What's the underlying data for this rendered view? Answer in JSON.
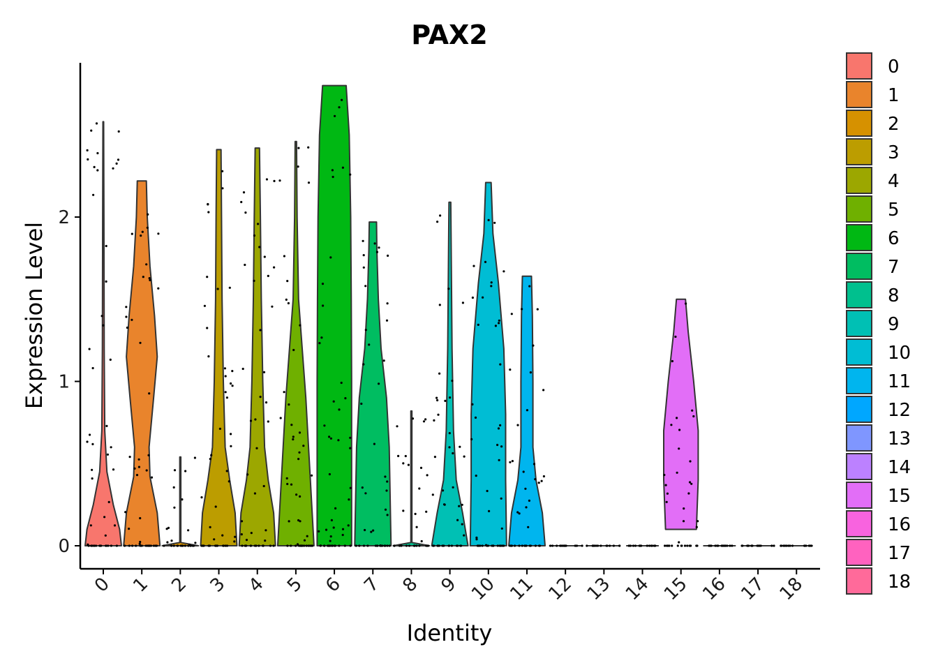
{
  "chart_data": {
    "type": "violin",
    "title": "PAX2",
    "xlabel": "Identity",
    "ylabel": "Expression Level",
    "ylim": [
      -0.13,
      2.93
    ],
    "yticks": [
      0,
      1,
      2
    ],
    "categories": [
      "0",
      "1",
      "2",
      "3",
      "4",
      "5",
      "6",
      "7",
      "8",
      "9",
      "10",
      "11",
      "12",
      "13",
      "14",
      "15",
      "16",
      "17",
      "18"
    ],
    "colors": [
      "#F8766D",
      "#E9842C",
      "#D69100",
      "#BC9D00",
      "#9CA700",
      "#6FB000",
      "#00B813",
      "#00BD61",
      "#00C08E",
      "#00C0B4",
      "#00BDD4",
      "#00B5EE",
      "#00A7FF",
      "#7F96FF",
      "#BC81FF",
      "#E26EF7",
      "#F863DF",
      "#FF62BF",
      "#FF6A9A"
    ],
    "max_expression": [
      2.58,
      2.22,
      0.54,
      2.41,
      2.42,
      2.46,
      2.8,
      1.97,
      0.82,
      2.09,
      2.21,
      1.64,
      0,
      0,
      0,
      1.5,
      0,
      0,
      0
    ],
    "legend": {
      "position": "right",
      "items": [
        "0",
        "1",
        "2",
        "3",
        "4",
        "5",
        "6",
        "7",
        "8",
        "9",
        "10",
        "11",
        "12",
        "13",
        "14",
        "15",
        "16",
        "17",
        "18"
      ]
    }
  }
}
